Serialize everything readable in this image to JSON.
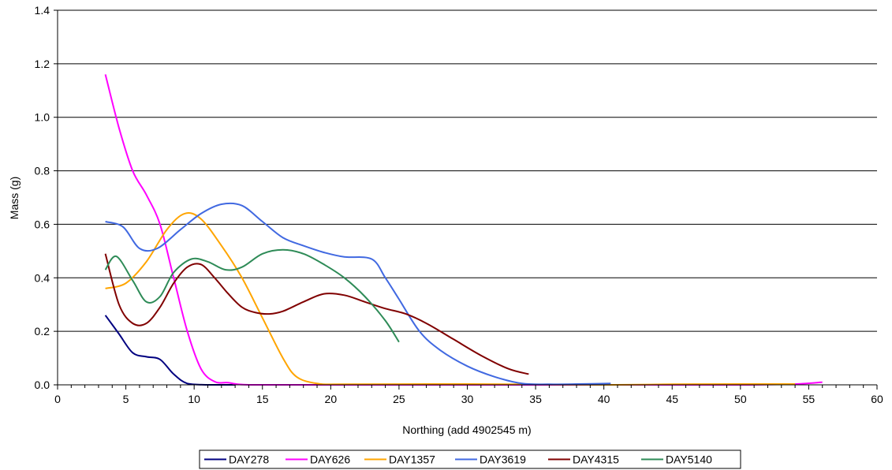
{
  "chart_data": {
    "type": "line",
    "xlabel": "Northing (add 4902545 m)",
    "ylabel": "Mass (g)",
    "xlim": [
      0,
      60
    ],
    "ylim": [
      0,
      1.4
    ],
    "x_major_ticks": [
      "0",
      "5",
      "10",
      "15",
      "20",
      "25",
      "30",
      "35",
      "40",
      "45",
      "50",
      "55",
      "60"
    ],
    "y_ticks": [
      "0.0",
      "0.2",
      "0.4",
      "0.6",
      "0.8",
      "1.0",
      "1.2",
      "1.4"
    ],
    "grid": "horizontal",
    "legend_position": "bottom",
    "series": [
      {
        "name": "DAY278",
        "color": "#000080",
        "points": [
          [
            3.5,
            0.26
          ],
          [
            4.5,
            0.19
          ],
          [
            5.5,
            0.12
          ],
          [
            6.5,
            0.105
          ],
          [
            7.5,
            0.095
          ],
          [
            8.5,
            0.04
          ],
          [
            9.5,
            0.005
          ],
          [
            11,
            0.0
          ],
          [
            13,
            0.0
          ]
        ]
      },
      {
        "name": "DAY626",
        "color": "#FF00FF",
        "points": [
          [
            3.5,
            1.16
          ],
          [
            4.5,
            0.96
          ],
          [
            5.5,
            0.8
          ],
          [
            6.5,
            0.71
          ],
          [
            7.5,
            0.6
          ],
          [
            8.5,
            0.4
          ],
          [
            9.5,
            0.2
          ],
          [
            10.5,
            0.06
          ],
          [
            11.5,
            0.012
          ],
          [
            12.5,
            0.008
          ],
          [
            14,
            0.0
          ],
          [
            20,
            0.0
          ],
          [
            30,
            0.0
          ],
          [
            40,
            0.0
          ],
          [
            50,
            0.0
          ],
          [
            54,
            0.003
          ],
          [
            56,
            0.01
          ]
        ]
      },
      {
        "name": "DAY1357",
        "color": "#FFA500",
        "points": [
          [
            3.5,
            0.36
          ],
          [
            5,
            0.38
          ],
          [
            6.5,
            0.46
          ],
          [
            8,
            0.58
          ],
          [
            9.3,
            0.64
          ],
          [
            10.5,
            0.62
          ],
          [
            12,
            0.52
          ],
          [
            13.5,
            0.4
          ],
          [
            15,
            0.25
          ],
          [
            16.5,
            0.1
          ],
          [
            17.5,
            0.03
          ],
          [
            19,
            0.005
          ],
          [
            21,
            0.002
          ],
          [
            30,
            0.003
          ],
          [
            40,
            0.0
          ],
          [
            45,
            0.002
          ],
          [
            50,
            0.003
          ],
          [
            54,
            0.003
          ]
        ]
      },
      {
        "name": "DAY3619",
        "color": "#4169E1",
        "points": [
          [
            3.5,
            0.61
          ],
          [
            4.8,
            0.59
          ],
          [
            6,
            0.51
          ],
          [
            7.3,
            0.51
          ],
          [
            9,
            0.58
          ],
          [
            10.5,
            0.64
          ],
          [
            12,
            0.675
          ],
          [
            13.5,
            0.67
          ],
          [
            15,
            0.61
          ],
          [
            16.5,
            0.55
          ],
          [
            18,
            0.52
          ],
          [
            19.5,
            0.495
          ],
          [
            21,
            0.478
          ],
          [
            23,
            0.47
          ],
          [
            24,
            0.4
          ],
          [
            25,
            0.32
          ],
          [
            26.5,
            0.2
          ],
          [
            28,
            0.13
          ],
          [
            30,
            0.07
          ],
          [
            32,
            0.03
          ],
          [
            34,
            0.005
          ],
          [
            36,
            0.002
          ],
          [
            38,
            0.003
          ],
          [
            40.5,
            0.005
          ]
        ]
      },
      {
        "name": "DAY4315",
        "color": "#800000",
        "points": [
          [
            3.5,
            0.49
          ],
          [
            4.5,
            0.3
          ],
          [
            5.5,
            0.23
          ],
          [
            6.5,
            0.23
          ],
          [
            7.5,
            0.29
          ],
          [
            8.5,
            0.38
          ],
          [
            9.5,
            0.44
          ],
          [
            10.5,
            0.45
          ],
          [
            11.5,
            0.4
          ],
          [
            12.5,
            0.34
          ],
          [
            13.5,
            0.29
          ],
          [
            14.5,
            0.27
          ],
          [
            15.5,
            0.265
          ],
          [
            16.5,
            0.275
          ],
          [
            18,
            0.31
          ],
          [
            19.5,
            0.34
          ],
          [
            21,
            0.335
          ],
          [
            22.5,
            0.31
          ],
          [
            24,
            0.285
          ],
          [
            25.5,
            0.265
          ],
          [
            27,
            0.23
          ],
          [
            29,
            0.17
          ],
          [
            31,
            0.11
          ],
          [
            33,
            0.06
          ],
          [
            34.5,
            0.04
          ]
        ]
      },
      {
        "name": "DAY5140",
        "color": "#2E8B57",
        "points": [
          [
            3.5,
            0.43
          ],
          [
            4.3,
            0.48
          ],
          [
            5.5,
            0.39
          ],
          [
            6.5,
            0.31
          ],
          [
            7.5,
            0.33
          ],
          [
            8.5,
            0.42
          ],
          [
            9.8,
            0.47
          ],
          [
            11,
            0.46
          ],
          [
            12.3,
            0.43
          ],
          [
            13.5,
            0.44
          ],
          [
            15,
            0.49
          ],
          [
            16.5,
            0.505
          ],
          [
            18,
            0.49
          ],
          [
            19.5,
            0.45
          ],
          [
            21,
            0.4
          ],
          [
            22.5,
            0.33
          ],
          [
            24,
            0.24
          ],
          [
            25,
            0.16
          ]
        ]
      }
    ]
  }
}
